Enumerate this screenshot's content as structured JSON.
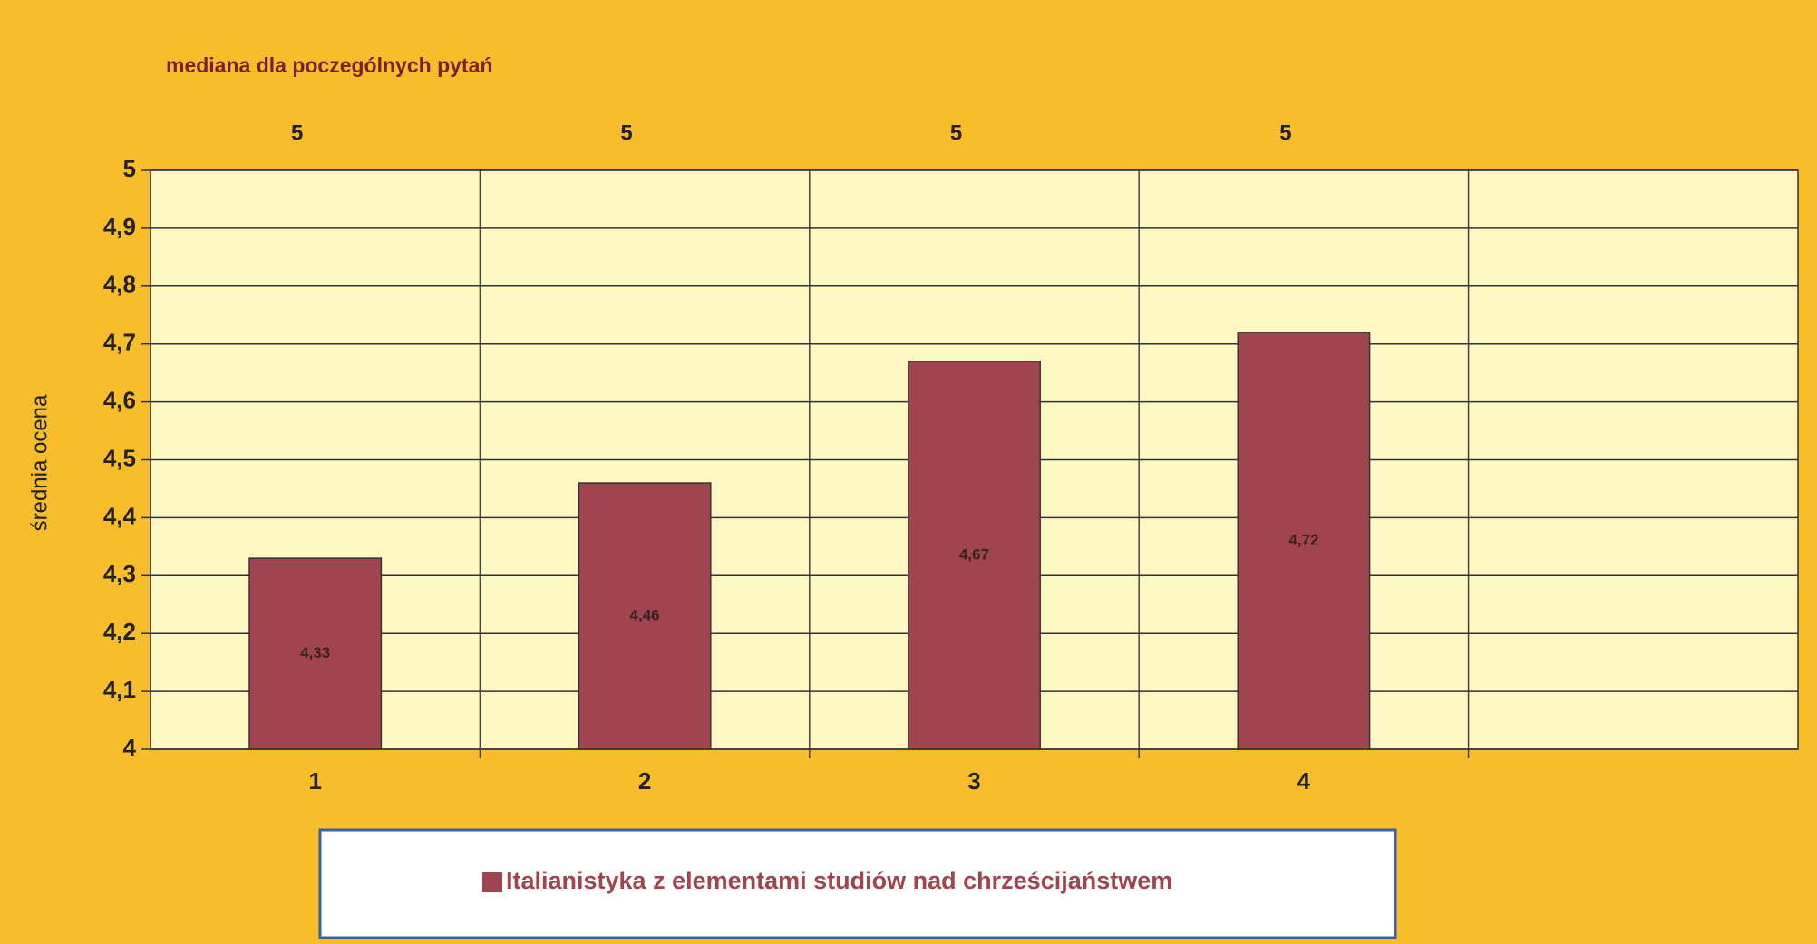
{
  "chart_data": {
    "type": "bar",
    "title": "mediana dla poczególnych pytań",
    "ylabel": "średnia ocena",
    "categories": [
      "1",
      "2",
      "3",
      "4",
      null
    ],
    "medians": [
      5,
      5,
      5,
      5,
      null
    ],
    "series": [
      {
        "name": "Italianistyka z elementami studiów nad chrześcijaństwem",
        "color": "#a0454f",
        "values": [
          4.33,
          4.46,
          4.67,
          4.72,
          null
        ],
        "value_labels": [
          "4,33",
          "4,46",
          "4,67",
          "4,72",
          null
        ]
      }
    ],
    "ylim": [
      4,
      5
    ],
    "yticks": [
      4,
      {
        "value": 4.1,
        "label": "4,1"
      },
      {
        "value": 4.2,
        "label": "4,2"
      },
      {
        "value": 4.3,
        "label": "4,3"
      },
      {
        "value": 4.4,
        "label": "4,4"
      },
      {
        "value": 4.5,
        "label": "4,5"
      },
      {
        "value": 4.6,
        "label": "4,6"
      },
      {
        "value": 4.7,
        "label": "4,7"
      },
      {
        "value": 4.8,
        "label": "4,8"
      },
      {
        "value": 4.9,
        "label": "4,9"
      },
      5
    ],
    "grid": true
  }
}
